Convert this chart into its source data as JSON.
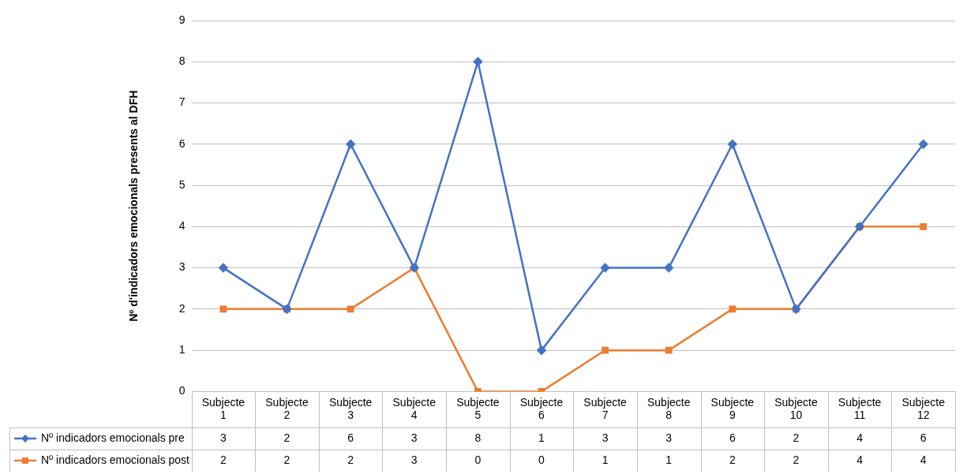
{
  "chart_data": {
    "type": "line",
    "ylabel": "Nº d'indicadors emocionals presents al DFH",
    "categories": [
      "Subjecte 1",
      "Subjecte 2",
      "Subjecte 3",
      "Subjecte 4",
      "Subjecte 5",
      "Subjecte 6",
      "Subjecte 7",
      "Subjecte 8",
      "Subjecte 9",
      "Subjecte 10",
      "Subjecte 11",
      "Subjecte 12"
    ],
    "series": [
      {
        "name": "Nº indicadors emocionals pre",
        "color": "#4472c4",
        "marker": "diamond",
        "values": [
          3,
          2,
          6,
          3,
          8,
          1,
          3,
          3,
          6,
          2,
          4,
          6
        ]
      },
      {
        "name": "Nº indicadors emocionals post",
        "color": "#ed7d31",
        "marker": "square",
        "values": [
          2,
          2,
          2,
          3,
          0,
          0,
          1,
          1,
          2,
          2,
          4,
          4
        ]
      }
    ],
    "ylim": [
      0,
      9
    ],
    "yticks": [
      0,
      1,
      2,
      3,
      4,
      5,
      6,
      7,
      8,
      9
    ],
    "grid": "y",
    "legend": "bottom",
    "data_labels": true
  }
}
